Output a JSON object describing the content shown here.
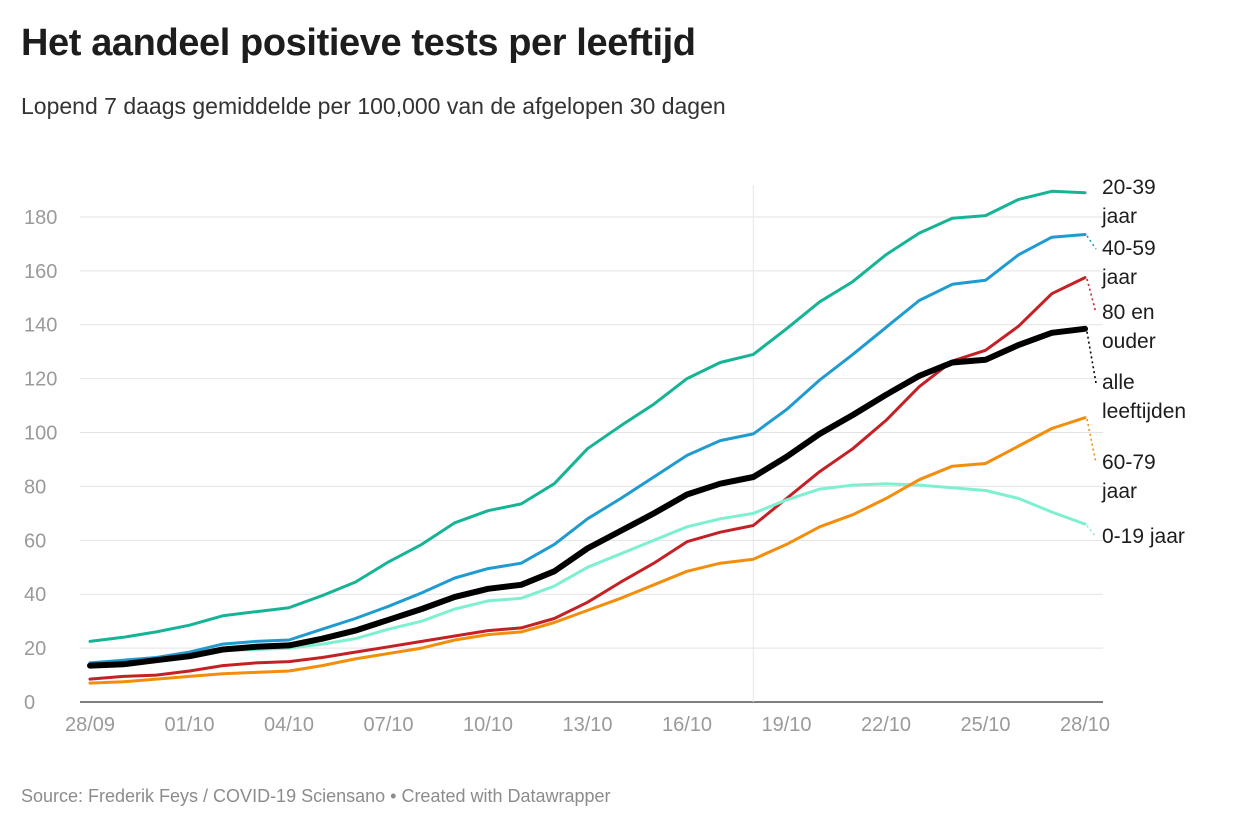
{
  "title": "Het aandeel positieve tests per leeftijd",
  "subtitle": "Lopend 7 daags gemiddelde per 100,000 van de afgelopen 30 dagen",
  "source": "Source: Frederik Feys / COVID-19 Sciensano • Created with Datawrapper",
  "chart_data": {
    "type": "line",
    "x": [
      "28/09",
      "29/09",
      "30/09",
      "01/10",
      "02/10",
      "03/10",
      "04/10",
      "05/10",
      "06/10",
      "07/10",
      "08/10",
      "09/10",
      "10/10",
      "11/10",
      "12/10",
      "13/10",
      "14/10",
      "15/10",
      "16/10",
      "17/10",
      "18/10",
      "19/10",
      "20/10",
      "21/10",
      "22/10",
      "23/10",
      "24/10",
      "25/10",
      "26/10",
      "27/10",
      "28/10"
    ],
    "x_ticks": [
      "28/09",
      "01/10",
      "04/10",
      "07/10",
      "10/10",
      "13/10",
      "16/10",
      "19/10",
      "22/10",
      "25/10",
      "28/10"
    ],
    "y_ticks": [
      0,
      20,
      40,
      60,
      80,
      100,
      120,
      140,
      160,
      180
    ],
    "ylim": [
      0,
      190
    ],
    "grid": true,
    "highlight_x": "18/10",
    "legend": "direct labels at right",
    "series": [
      {
        "name": "20-39 jaar",
        "label_lines": [
          "20-39",
          "jaar"
        ],
        "color": "#15b494",
        "width": 3,
        "values": [
          22.5,
          24,
          26,
          28.5,
          32,
          33.5,
          35,
          39.5,
          44.5,
          52,
          58.5,
          66.5,
          71,
          73.5,
          81,
          94,
          102.5,
          110.5,
          120,
          126,
          129,
          138.5,
          148.5,
          156,
          166,
          174,
          179.5,
          180.5,
          186.5,
          189.5,
          189
        ]
      },
      {
        "name": "40-59 jaar",
        "label_lines": [
          "40-59",
          "jaar"
        ],
        "color": "#1f9bd0",
        "width": 3,
        "values": [
          14.5,
          15.5,
          16.5,
          18.5,
          21.5,
          22.5,
          23,
          27,
          31,
          35.5,
          40.5,
          46,
          49.5,
          51.5,
          58.5,
          68,
          75.5,
          83.5,
          91.5,
          97,
          99.5,
          108.5,
          119.5,
          129,
          139,
          149,
          155,
          156.5,
          166,
          172.5,
          173.5
        ]
      },
      {
        "name": "80 en ouder",
        "label_lines": [
          "80 en",
          "ouder"
        ],
        "color": "#c42025",
        "width": 3,
        "values": [
          8.5,
          9.5,
          10,
          11.5,
          13.5,
          14.5,
          15,
          16.5,
          18.5,
          20.5,
          22.5,
          24.5,
          26.5,
          27.5,
          31,
          37,
          44.5,
          51.5,
          59.5,
          63,
          65.5,
          75.5,
          85.5,
          94,
          104.5,
          117,
          126.5,
          130.5,
          139.5,
          151.5,
          157.5
        ]
      },
      {
        "name": "0-19 jaar",
        "label_lines": [
          "0-19 jaar"
        ],
        "color": "#7ef0d2",
        "width": 3,
        "values": [
          13,
          14,
          15,
          16.5,
          19,
          19.5,
          20,
          21.5,
          23.5,
          27,
          30,
          34.5,
          37.5,
          38.5,
          43,
          50,
          55,
          60,
          65,
          68,
          70,
          75,
          79,
          80.5,
          81,
          80.5,
          79.5,
          78.5,
          75.5,
          70.5,
          66
        ]
      },
      {
        "name": "60-79 jaar",
        "label_lines": [
          "60-79",
          "jaar"
        ],
        "color": "#f28e0c",
        "width": 3,
        "values": [
          7,
          7.5,
          8.5,
          9.5,
          10.5,
          11,
          11.5,
          13.5,
          16,
          18,
          20,
          23,
          25,
          26,
          29.5,
          34,
          38.5,
          43.5,
          48.5,
          51.5,
          53,
          58.5,
          65,
          69.5,
          75.5,
          82.5,
          87.5,
          88.5,
          95,
          101.5,
          105.5
        ]
      },
      {
        "name": "alle leeftijden",
        "label_lines": [
          "alle",
          "leeftijden"
        ],
        "color": "#000000",
        "width": 6,
        "values": [
          13.5,
          14,
          15.5,
          17,
          19.5,
          20.5,
          21,
          23.5,
          26.5,
          30.5,
          34.5,
          39,
          42,
          43.5,
          48.5,
          57,
          63.5,
          70,
          77,
          81,
          83.5,
          91,
          99.5,
          106.5,
          114,
          121,
          126,
          127,
          132.5,
          137,
          138.5
        ]
      }
    ]
  }
}
